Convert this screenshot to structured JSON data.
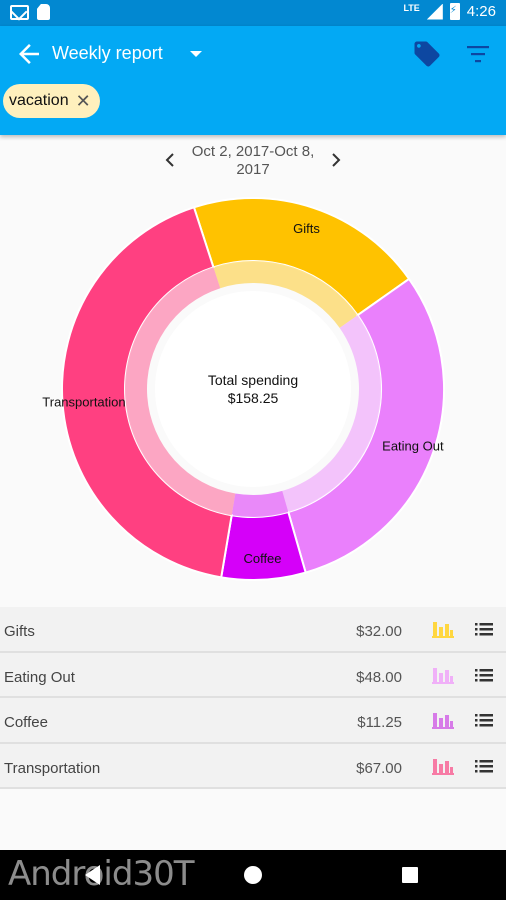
{
  "status_bar": {
    "network": "LTE",
    "time": "4:26"
  },
  "app_bar": {
    "title": "Weekly report",
    "chip": {
      "label": "vacation"
    }
  },
  "date_nav": {
    "range": "Oct 2, 2017-Oct 8, 2017"
  },
  "chart_data": {
    "type": "pie",
    "center_label": "Total spending",
    "center_value": "$158.25",
    "slices": [
      {
        "label": "Gifts",
        "value": 32.0,
        "color": "#ffc200"
      },
      {
        "label": "Eating Out",
        "value": 48.0,
        "color": "#ea80fc"
      },
      {
        "label": "Coffee",
        "value": 11.25,
        "color": "#d500f9"
      },
      {
        "label": "Transportation",
        "value": 67.0,
        "color": "#ff4081"
      }
    ]
  },
  "rows": [
    {
      "name": "Gifts",
      "amount": "$32.00",
      "color": "#ffd740"
    },
    {
      "name": "Eating Out",
      "amount": "$48.00",
      "color": "#f0b0f8"
    },
    {
      "name": "Coffee",
      "amount": "$11.25",
      "color": "#d77be8"
    },
    {
      "name": "Transportation",
      "amount": "$67.00",
      "color": "#f77ba5"
    }
  ],
  "watermark": "Android30T"
}
